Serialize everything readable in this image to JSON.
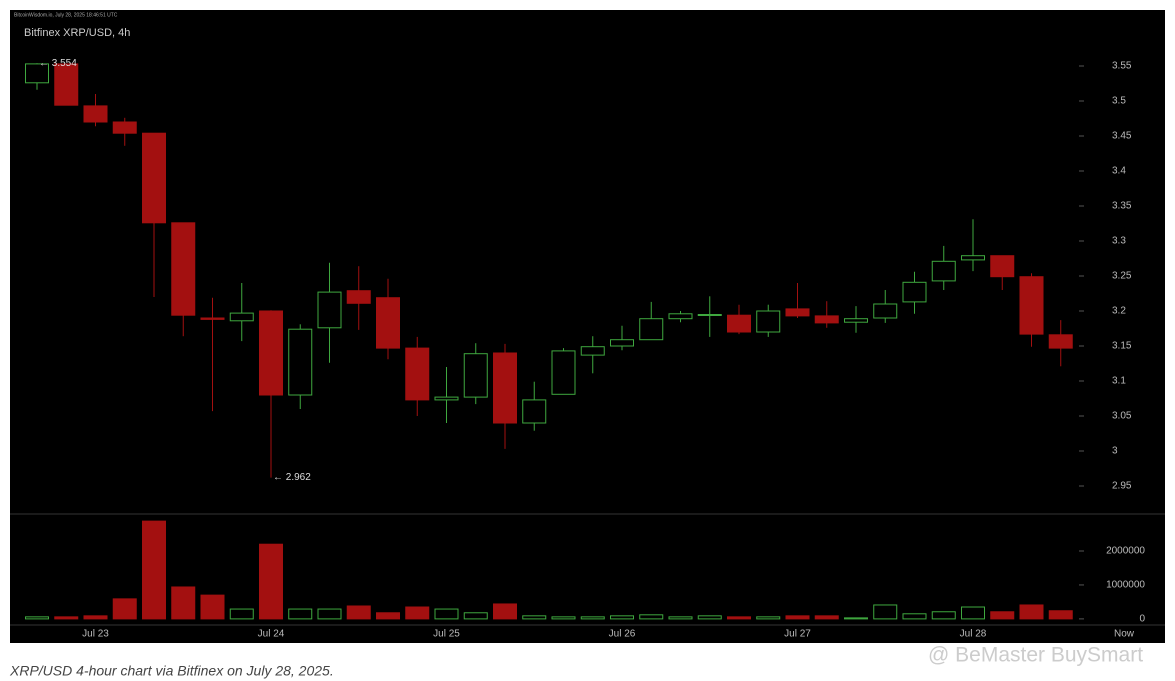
{
  "chart_data": {
    "type": "candlestick",
    "source": "BitcoinWisdom.io, July 28, 2025 18:46:51 UTC",
    "title": "Bitfinex XRP/USD, 4h",
    "categories": [
      null,
      null,
      "Jul 23",
      null,
      null,
      null,
      null,
      null,
      "Jul 24",
      null,
      null,
      null,
      null,
      null,
      "Jul 25",
      null,
      null,
      null,
      null,
      null,
      "Jul 26",
      null,
      null,
      null,
      null,
      null,
      "Jul 27",
      null,
      null,
      null,
      null,
      null,
      "Jul 28",
      null,
      null,
      null
    ],
    "now_label": "Now",
    "open": [
      3.526,
      3.553,
      3.493,
      3.47,
      3.454,
      3.326,
      3.19,
      3.186,
      3.2,
      3.08,
      3.176,
      3.229,
      3.219,
      3.147,
      3.073,
      3.077,
      3.14,
      3.04,
      3.081,
      3.137,
      3.15,
      3.159,
      3.189,
      3.194,
      3.194,
      3.17,
      3.203,
      3.193,
      3.184,
      3.19,
      3.213,
      3.243,
      3.273,
      3.279,
      3.249,
      3.166
    ],
    "high": [
      3.554,
      3.553,
      3.51,
      3.476,
      3.454,
      3.326,
      3.219,
      3.24,
      3.201,
      3.181,
      3.269,
      3.264,
      3.246,
      3.163,
      3.12,
      3.154,
      3.153,
      3.099,
      3.147,
      3.164,
      3.179,
      3.213,
      3.2,
      3.221,
      3.209,
      3.209,
      3.24,
      3.214,
      3.207,
      3.23,
      3.256,
      3.293,
      3.331,
      3.279,
      3.254,
      3.187
    ],
    "low": [
      3.516,
      3.494,
      3.464,
      3.436,
      3.22,
      3.164,
      3.057,
      3.157,
      2.962,
      3.06,
      3.126,
      3.173,
      3.131,
      3.05,
      3.04,
      3.067,
      3.003,
      3.029,
      3.081,
      3.111,
      3.144,
      3.159,
      3.184,
      3.163,
      3.167,
      3.163,
      3.19,
      3.176,
      3.169,
      3.183,
      3.196,
      3.23,
      3.257,
      3.23,
      3.149,
      3.121
    ],
    "close": [
      3.553,
      3.494,
      3.47,
      3.454,
      3.326,
      3.194,
      3.188,
      3.197,
      3.08,
      3.174,
      3.227,
      3.211,
      3.147,
      3.073,
      3.077,
      3.139,
      3.04,
      3.073,
      3.143,
      3.149,
      3.159,
      3.189,
      3.196,
      3.195,
      3.17,
      3.2,
      3.193,
      3.183,
      3.189,
      3.21,
      3.241,
      3.271,
      3.279,
      3.249,
      3.167,
      3.147
    ],
    "up_color": "#3fa83f",
    "down_color": "#a31010",
    "ylim": [
      2.91,
      3.63
    ],
    "yticks": [
      2.95,
      3,
      3.05,
      3.1,
      3.15,
      3.2,
      3.25,
      3.3,
      3.35,
      3.4,
      3.45,
      3.5,
      3.55
    ],
    "annotations": [
      {
        "value": 3.554,
        "label": "← 3.554"
      },
      {
        "value": 2.962,
        "label": "← 2.962"
      }
    ],
    "volume": {
      "values": [
        60000,
        60000,
        90000,
        590000,
        2880000,
        940000,
        700000,
        290000,
        2200000,
        290000,
        290000,
        380000,
        180000,
        350000,
        290000,
        180000,
        440000,
        90000,
        60000,
        60000,
        90000,
        120000,
        60000,
        90000,
        60000,
        60000,
        90000,
        90000,
        30000,
        410000,
        150000,
        210000,
        350000,
        210000,
        410000,
        240000
      ],
      "ylim": [
        -180000,
        3090000
      ],
      "yticks": [
        0,
        1000000,
        2000000
      ]
    }
  },
  "caption": "XRP/USD 4-hour chart via Bitfinex on July 28, 2025.",
  "watermark": "@ BeMaster BuySmart"
}
